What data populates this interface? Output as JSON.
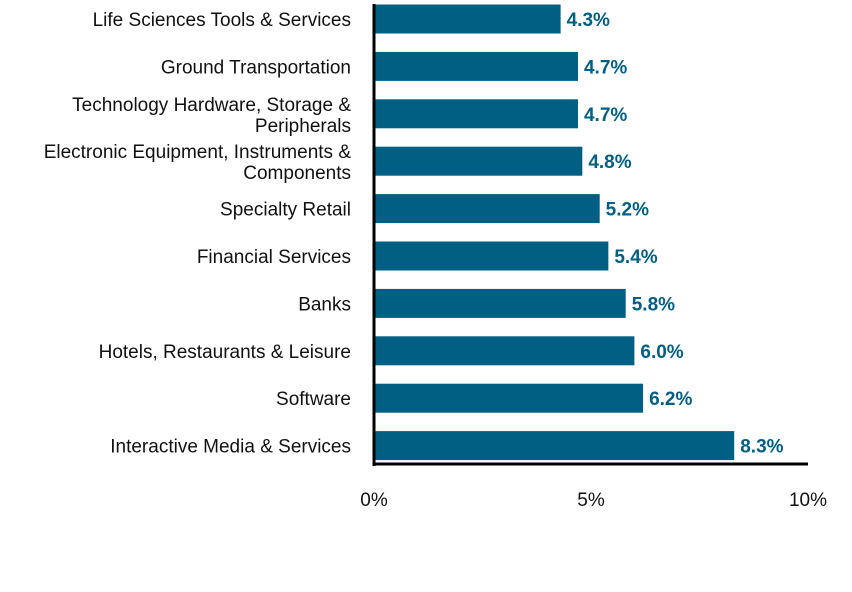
{
  "chart_data": {
    "type": "bar",
    "orientation": "horizontal",
    "title": "",
    "xlabel": "",
    "ylabel": "",
    "categories": [
      [
        "Life Sciences Tools & Services"
      ],
      [
        "Ground Transportation"
      ],
      [
        "Technology Hardware, Storage &",
        "Peripherals"
      ],
      [
        "Electronic Equipment, Instruments &",
        "Components"
      ],
      [
        "Specialty Retail"
      ],
      [
        "Financial Services"
      ],
      [
        "Banks"
      ],
      [
        "Hotels, Restaurants & Leisure"
      ],
      [
        "Software"
      ],
      [
        "Interactive Media & Services"
      ]
    ],
    "values": [
      4.3,
      4.7,
      4.7,
      4.8,
      5.2,
      5.4,
      5.8,
      6.0,
      6.2,
      8.3
    ],
    "value_labels": [
      "4.3%",
      "4.7%",
      "4.7%",
      "4.8%",
      "5.2%",
      "5.4%",
      "5.8%",
      "6.0%",
      "6.2%",
      "8.3%"
    ],
    "xlim": [
      0,
      10
    ],
    "x_ticks": [
      0,
      5,
      10
    ],
    "x_tick_labels": [
      "0%",
      "5%",
      "10%"
    ],
    "grid": false,
    "legend": "none",
    "colors": {
      "bar": "#005f83",
      "value_label": "#005f83",
      "axis": "#000000"
    }
  }
}
